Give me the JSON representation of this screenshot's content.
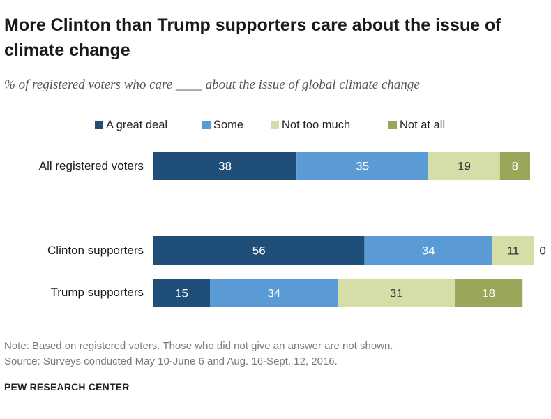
{
  "chart_data": {
    "type": "bar",
    "stacked": true,
    "orientation": "horizontal",
    "title": "More Clinton than Trump supporters care about the issue of climate change",
    "subtitle": "% of registered voters who care ____ about the issue of global climate change",
    "categories": [
      "All registered voters",
      "Clinton supporters",
      "Trump supporters"
    ],
    "series": [
      {
        "name": "A great deal",
        "color": "#1f4e79",
        "values": [
          38,
          56,
          15
        ]
      },
      {
        "name": "Some",
        "color": "#5b9bd5",
        "values": [
          35,
          34,
          34
        ]
      },
      {
        "name": "Not too much",
        "color": "#d4dea6",
        "values": [
          19,
          11,
          31
        ]
      },
      {
        "name": "Not at all",
        "color": "#9aa65a",
        "values": [
          8,
          0,
          18
        ]
      }
    ],
    "label_colors": [
      "#ffffff",
      "#ffffff",
      "#333333",
      "#ffffff"
    ],
    "xlim": [
      0,
      100
    ],
    "legend_position": "top",
    "outside_labels": [
      {
        "category": "Clinton supporters",
        "series": "Not at all",
        "text": "0"
      }
    ]
  },
  "footer": {
    "note": "Note: Based on registered voters. Those who did not give an answer are not shown.",
    "source": "Source: Surveys conducted May 10-June 6 and Aug. 16-Sept. 12, 2016.",
    "brand": "PEW RESEARCH CENTER"
  }
}
